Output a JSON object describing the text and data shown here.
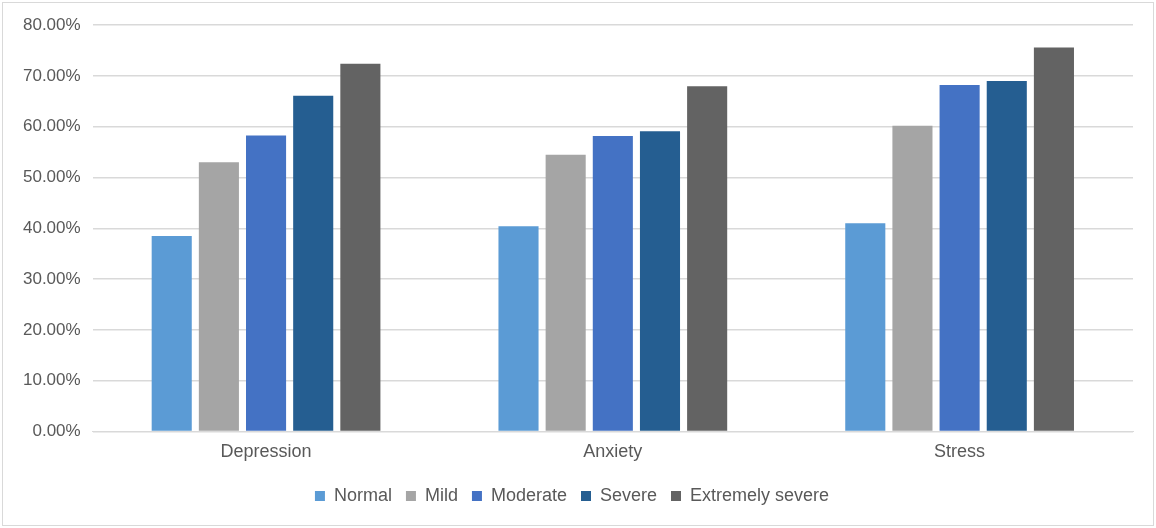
{
  "chart_data": {
    "type": "bar",
    "categories": [
      "Depression",
      "Anxiety",
      "Stress"
    ],
    "series": [
      {
        "name": "Normal",
        "color": "#5b9bd5",
        "values": [
          38.5,
          40.4,
          41.0
        ]
      },
      {
        "name": "Mild",
        "color": "#a5a5a5",
        "values": [
          53.0,
          54.5,
          60.2
        ]
      },
      {
        "name": "Moderate",
        "color": "#4472c4",
        "values": [
          58.3,
          58.2,
          68.2
        ]
      },
      {
        "name": "Severe",
        "color": "#255e91",
        "values": [
          66.1,
          59.1,
          69.0
        ]
      },
      {
        "name": "Extremely severe",
        "color": "#636363",
        "values": [
          72.4,
          68.0,
          75.6
        ]
      }
    ],
    "ylim": [
      0,
      80
    ],
    "yticks": [
      {
        "value": 0,
        "label": "0.00%"
      },
      {
        "value": 10,
        "label": "10.00%"
      },
      {
        "value": 20,
        "label": "20.00%"
      },
      {
        "value": 30,
        "label": "30.00%"
      },
      {
        "value": 40,
        "label": "40.00%"
      },
      {
        "value": 50,
        "label": "50.00%"
      },
      {
        "value": 60,
        "label": "60.00%"
      },
      {
        "value": 70,
        "label": "70.00%"
      },
      {
        "value": 80,
        "label": "80.00%"
      }
    ],
    "grid": "y",
    "legend": "bottom"
  }
}
